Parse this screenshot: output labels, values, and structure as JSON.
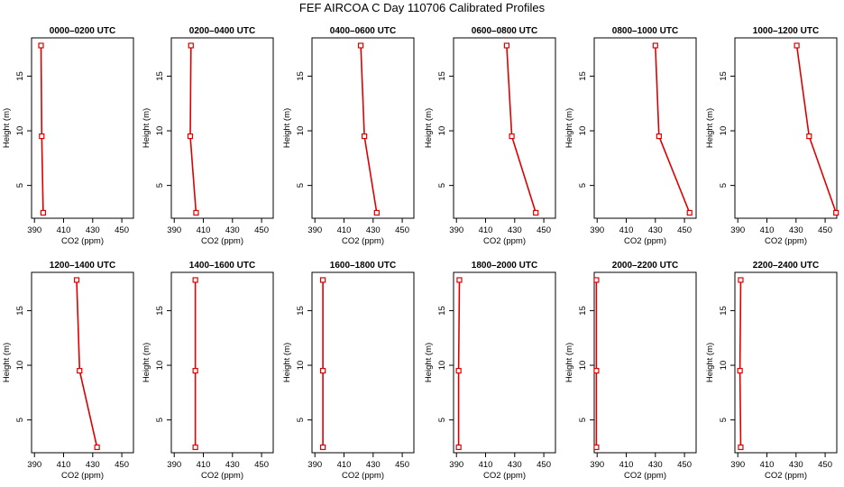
{
  "page": {
    "title": "FEF AIRCOA C  Day 110706  Calibrated Profiles"
  },
  "colors": {
    "profile": "#dd0000",
    "axis": "#000000",
    "background": "#ffffff"
  },
  "chart_data": [
    {
      "type": "line",
      "title": "0000–0200 UTC",
      "xlabel": "CO2 (ppm)",
      "ylabel": "Height (m)",
      "xlim": [
        388,
        458
      ],
      "ylim": [
        2,
        18.5
      ],
      "xticks": [
        390,
        410,
        430,
        450
      ],
      "yticks": [
        5,
        10,
        15
      ],
      "grid": false,
      "points": [
        {
          "x": 396,
          "y": 2.5
        },
        {
          "x": 395,
          "y": 9.5
        },
        {
          "x": 394.5,
          "y": 17.8
        }
      ]
    },
    {
      "type": "line",
      "title": "0200–0400 UTC",
      "xlabel": "CO2 (ppm)",
      "ylabel": "Height (m)",
      "xlim": [
        388,
        458
      ],
      "ylim": [
        2,
        18.5
      ],
      "xticks": [
        390,
        410,
        430,
        450
      ],
      "yticks": [
        5,
        10,
        15
      ],
      "grid": false,
      "points": [
        {
          "x": 405,
          "y": 2.5
        },
        {
          "x": 401,
          "y": 9.5
        },
        {
          "x": 401.5,
          "y": 17.8
        }
      ]
    },
    {
      "type": "line",
      "title": "0400–0600 UTC",
      "xlabel": "CO2 (ppm)",
      "ylabel": "Height (m)",
      "xlim": [
        388,
        458
      ],
      "ylim": [
        2,
        18.5
      ],
      "xticks": [
        390,
        410,
        430,
        450
      ],
      "yticks": [
        5,
        10,
        15
      ],
      "grid": false,
      "points": [
        {
          "x": 432.5,
          "y": 2.5
        },
        {
          "x": 424,
          "y": 9.5
        },
        {
          "x": 421.5,
          "y": 17.8
        }
      ]
    },
    {
      "type": "line",
      "title": "0600–0800 UTC",
      "xlabel": "CO2 (ppm)",
      "ylabel": "Height (m)",
      "xlim": [
        388,
        458
      ],
      "ylim": [
        2,
        18.5
      ],
      "xticks": [
        390,
        410,
        430,
        450
      ],
      "yticks": [
        5,
        10,
        15
      ],
      "grid": false,
      "points": [
        {
          "x": 444.5,
          "y": 2.5
        },
        {
          "x": 428,
          "y": 9.5
        },
        {
          "x": 424.5,
          "y": 17.8
        }
      ]
    },
    {
      "type": "line",
      "title": "0800–1000 UTC",
      "xlabel": "CO2 (ppm)",
      "ylabel": "Height (m)",
      "xlim": [
        388,
        458
      ],
      "ylim": [
        2,
        18.5
      ],
      "xticks": [
        390,
        410,
        430,
        450
      ],
      "yticks": [
        5,
        10,
        15
      ],
      "grid": false,
      "points": [
        {
          "x": 453.5,
          "y": 2.5
        },
        {
          "x": 432.5,
          "y": 9.5
        },
        {
          "x": 430,
          "y": 17.8
        }
      ]
    },
    {
      "type": "line",
      "title": "1000–1200 UTC",
      "xlabel": "CO2 (ppm)",
      "ylabel": "Height (m)",
      "xlim": [
        388,
        458
      ],
      "ylim": [
        2,
        18.5
      ],
      "xticks": [
        390,
        410,
        430,
        450
      ],
      "yticks": [
        5,
        10,
        15
      ],
      "grid": false,
      "points": [
        {
          "x": 457.5,
          "y": 2.5
        },
        {
          "x": 439,
          "y": 9.5
        },
        {
          "x": 430.5,
          "y": 17.8
        }
      ]
    },
    {
      "type": "line",
      "title": "1200–1400 UTC",
      "xlabel": "CO2 (ppm)",
      "ylabel": "Height (m)",
      "xlim": [
        388,
        458
      ],
      "ylim": [
        2,
        18.5
      ],
      "xticks": [
        390,
        410,
        430,
        450
      ],
      "yticks": [
        5,
        10,
        15
      ],
      "grid": false,
      "points": [
        {
          "x": 433,
          "y": 2.5
        },
        {
          "x": 421,
          "y": 9.5
        },
        {
          "x": 419,
          "y": 17.8
        }
      ]
    },
    {
      "type": "line",
      "title": "1400–1600 UTC",
      "xlabel": "CO2 (ppm)",
      "ylabel": "Height (m)",
      "xlim": [
        388,
        458
      ],
      "ylim": [
        2,
        18.5
      ],
      "xticks": [
        390,
        410,
        430,
        450
      ],
      "yticks": [
        5,
        10,
        15
      ],
      "grid": false,
      "points": [
        {
          "x": 404.5,
          "y": 2.5
        },
        {
          "x": 404.5,
          "y": 9.5
        },
        {
          "x": 404.5,
          "y": 17.8
        }
      ]
    },
    {
      "type": "line",
      "title": "1600–1800 UTC",
      "xlabel": "CO2 (ppm)",
      "ylabel": "Height (m)",
      "xlim": [
        388,
        458
      ],
      "ylim": [
        2,
        18.5
      ],
      "xticks": [
        390,
        410,
        430,
        450
      ],
      "yticks": [
        5,
        10,
        15
      ],
      "grid": false,
      "points": [
        {
          "x": 395.5,
          "y": 2.5
        },
        {
          "x": 395.5,
          "y": 9.5
        },
        {
          "x": 395.5,
          "y": 17.8
        }
      ]
    },
    {
      "type": "line",
      "title": "1800–2000 UTC",
      "xlabel": "CO2 (ppm)",
      "ylabel": "Height (m)",
      "xlim": [
        388,
        458
      ],
      "ylim": [
        2,
        18.5
      ],
      "xticks": [
        390,
        410,
        430,
        450
      ],
      "yticks": [
        5,
        10,
        15
      ],
      "grid": false,
      "points": [
        {
          "x": 391.5,
          "y": 2.5
        },
        {
          "x": 391.5,
          "y": 9.5
        },
        {
          "x": 392,
          "y": 17.8
        }
      ]
    },
    {
      "type": "line",
      "title": "2000–2200 UTC",
      "xlabel": "CO2 (ppm)",
      "ylabel": "Height (m)",
      "xlim": [
        388,
        458
      ],
      "ylim": [
        2,
        18.5
      ],
      "xticks": [
        390,
        410,
        430,
        450
      ],
      "yticks": [
        5,
        10,
        15
      ],
      "grid": false,
      "points": [
        {
          "x": 389.5,
          "y": 2.5
        },
        {
          "x": 389.5,
          "y": 9.5
        },
        {
          "x": 389.5,
          "y": 17.8
        }
      ]
    },
    {
      "type": "line",
      "title": "2200–2400 UTC",
      "xlabel": "CO2 (ppm)",
      "ylabel": "Height (m)",
      "xlim": [
        388,
        458
      ],
      "ylim": [
        2,
        18.5
      ],
      "xticks": [
        390,
        410,
        430,
        450
      ],
      "yticks": [
        5,
        10,
        15
      ],
      "grid": false,
      "points": [
        {
          "x": 392,
          "y": 2.5
        },
        {
          "x": 391.5,
          "y": 9.5
        },
        {
          "x": 392,
          "y": 17.8
        }
      ]
    }
  ]
}
